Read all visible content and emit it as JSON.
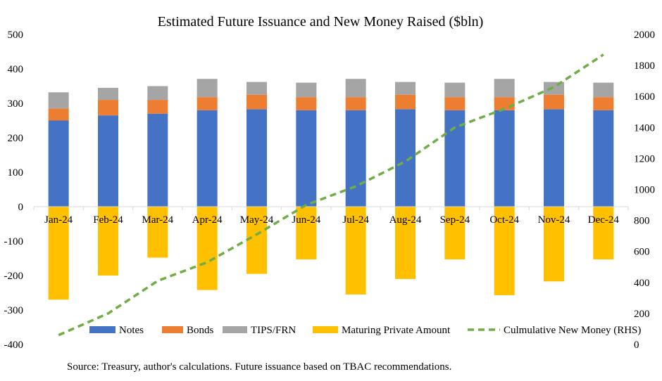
{
  "chart_data": {
    "type": "bar",
    "title": "Estimated Future Issuance and New Money Raised ($bln)",
    "categories": [
      "Jan-24",
      "Feb-24",
      "Mar-24",
      "Apr-24",
      "May-24",
      "Jun-24",
      "Jul-24",
      "Aug-24",
      "Sep-24",
      "Oct-24",
      "Nov-24",
      "Dec-24"
    ],
    "left_axis": {
      "ylim": [
        -400,
        500
      ],
      "ticks": [
        500,
        400,
        300,
        200,
        100,
        0,
        -100,
        -200,
        -300,
        -400
      ]
    },
    "right_axis": {
      "ylim": [
        0,
        2000
      ],
      "ticks": [
        2000,
        1800,
        1600,
        1400,
        1200,
        1000,
        800,
        600,
        400,
        200,
        0
      ]
    },
    "series": [
      {
        "name": "Notes",
        "kind": "stacked-bar",
        "color": "#4472C4",
        "values": [
          250,
          265,
          270,
          280,
          283,
          280,
          280,
          283,
          280,
          280,
          283,
          280
        ]
      },
      {
        "name": "Bonds",
        "kind": "stacked-bar",
        "color": "#ED7D31",
        "values": [
          35,
          45,
          40,
          38,
          42,
          38,
          38,
          42,
          38,
          38,
          42,
          38
        ]
      },
      {
        "name": "TIPS/FRN",
        "kind": "stacked-bar",
        "color": "#A5A5A5",
        "values": [
          47,
          35,
          40,
          53,
          37,
          42,
          53,
          37,
          42,
          53,
          37,
          42
        ]
      },
      {
        "name": "Maturing Private Amount",
        "kind": "bar",
        "color": "#FFC000",
        "values": [
          -270,
          -200,
          -148,
          -242,
          -195,
          -153,
          -255,
          -210,
          -153,
          -257,
          -217,
          -153
        ]
      },
      {
        "name": "Culmulative New Money (RHS)",
        "kind": "line",
        "axis": "right",
        "color": "#70AD47",
        "dash": "dashed",
        "values": [
          60,
          200,
          410,
          530,
          710,
          900,
          1020,
          1180,
          1400,
          1520,
          1660,
          1870
        ]
      }
    ],
    "legend_position": "bottom-inside",
    "grid": false
  },
  "source_note": "Source: Treasury, author's calculations. Future issuance based on TBAC recommendations."
}
